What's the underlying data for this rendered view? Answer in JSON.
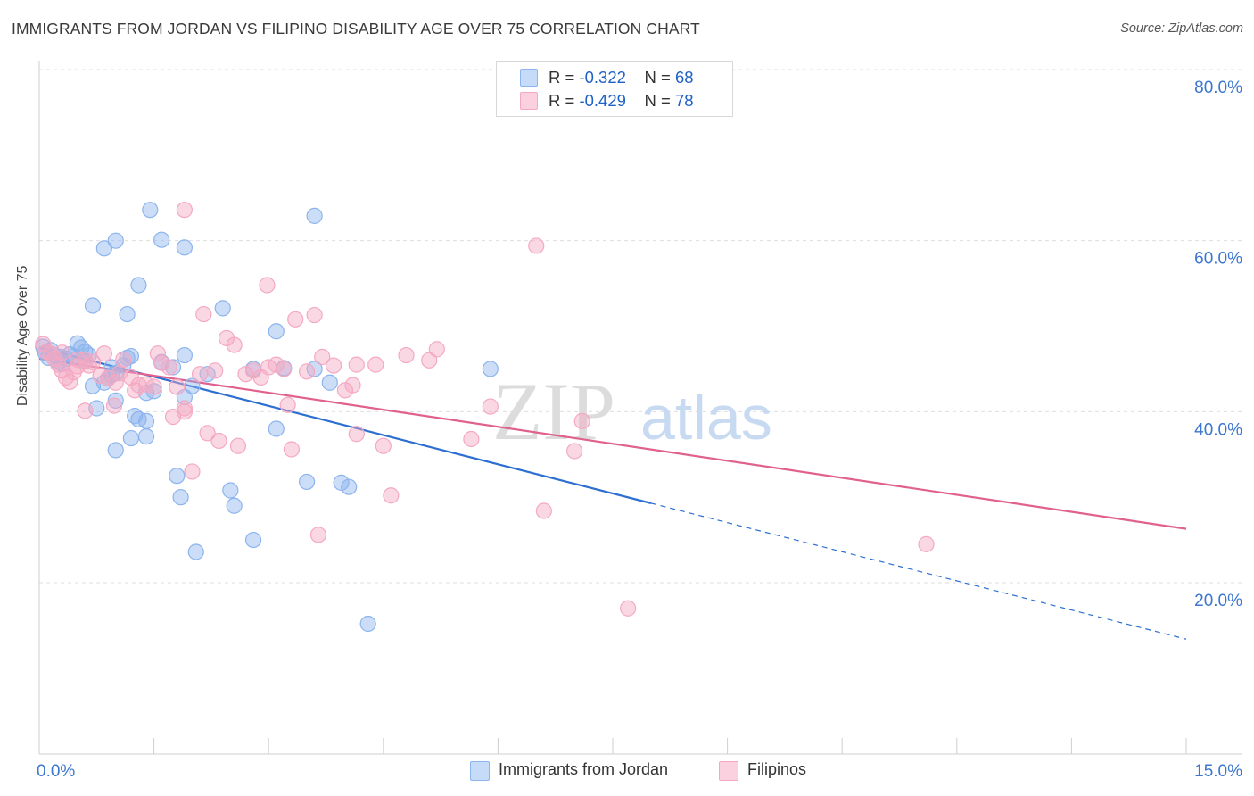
{
  "title": "IMMIGRANTS FROM JORDAN VS FILIPINO DISABILITY AGE OVER 75 CORRELATION CHART",
  "source": "Source: ZipAtlas.com",
  "watermark": {
    "zip": "ZIP",
    "atlas": "atlas"
  },
  "legend": {
    "rows": [
      {
        "r_label": "R =",
        "r_value": "-0.322",
        "n_label": "N =",
        "n_value": "68"
      },
      {
        "r_label": "R =",
        "r_value": "-0.429",
        "n_label": "N =",
        "n_value": "78"
      }
    ]
  },
  "chart_data": {
    "type": "scatter",
    "title": "IMMIGRANTS FROM JORDAN VS FILIPINO DISABILITY AGE OVER 75 CORRELATION CHART",
    "xlabel": "",
    "ylabel": "Disability Age Over 75",
    "xlim": [
      0,
      15
    ],
    "ylim": [
      0,
      80
    ],
    "x_tick_labels": [
      "0.0%",
      "15.0%"
    ],
    "y_ticks": [
      20,
      40,
      60,
      80
    ],
    "y_tick_labels": [
      "20.0%",
      "40.0%",
      "60.0%",
      "80.0%"
    ],
    "grid": true,
    "legend_position": "bottom",
    "series": [
      {
        "name": "Immigrants from Jordan",
        "color": "#8cb4ee",
        "line_color": "#2c6fd1",
        "stats": {
          "R": -0.322,
          "N": 68
        },
        "trend": {
          "x0": 0,
          "y0": 47.5,
          "x1": 8.0,
          "y1": 29.3,
          "dashed_to_x": 15,
          "dashed_to_y": 13.4
        },
        "points": [
          [
            0.05,
            47.6
          ],
          [
            0.08,
            46.9
          ],
          [
            0.12,
            46.3
          ],
          [
            0.15,
            47.2
          ],
          [
            0.2,
            46.6
          ],
          [
            0.25,
            45.8
          ],
          [
            0.28,
            46.4
          ],
          [
            0.3,
            45.6
          ],
          [
            0.35,
            46.2
          ],
          [
            0.4,
            46.7
          ],
          [
            0.45,
            46.5
          ],
          [
            0.5,
            48.0
          ],
          [
            0.55,
            47.5
          ],
          [
            0.6,
            45.9
          ],
          [
            0.65,
            46.6
          ],
          [
            0.7,
            43.0
          ],
          [
            0.75,
            40.4
          ],
          [
            0.7,
            52.4
          ],
          [
            0.85,
            43.4
          ],
          [
            0.9,
            43.9
          ],
          [
            0.95,
            44.3
          ],
          [
            1.0,
            44.5
          ],
          [
            0.95,
            45.2
          ],
          [
            1.1,
            45.4
          ],
          [
            1.15,
            46.3
          ],
          [
            1.2,
            46.5
          ],
          [
            0.85,
            59.1
          ],
          [
            1.0,
            60.0
          ],
          [
            1.15,
            51.4
          ],
          [
            1.3,
            54.8
          ],
          [
            1.45,
            63.6
          ],
          [
            1.6,
            60.1
          ],
          [
            1.6,
            45.8
          ],
          [
            1.75,
            45.2
          ],
          [
            1.9,
            46.6
          ],
          [
            1.9,
            59.2
          ],
          [
            2.0,
            43.0
          ],
          [
            1.9,
            41.7
          ],
          [
            2.2,
            44.4
          ],
          [
            2.4,
            52.1
          ],
          [
            2.8,
            45.0
          ],
          [
            3.1,
            49.4
          ],
          [
            3.2,
            45.1
          ],
          [
            3.6,
            45.0
          ],
          [
            3.8,
            43.4
          ],
          [
            3.6,
            62.9
          ],
          [
            5.9,
            45.0
          ],
          [
            1.0,
            35.5
          ],
          [
            1.2,
            36.9
          ],
          [
            1.25,
            39.5
          ],
          [
            1.3,
            39.1
          ],
          [
            1.4,
            37.1
          ],
          [
            1.4,
            38.9
          ],
          [
            1.5,
            42.4
          ],
          [
            1.8,
            32.5
          ],
          [
            1.85,
            30.0
          ],
          [
            2.05,
            23.6
          ],
          [
            2.5,
            30.8
          ],
          [
            2.55,
            29.0
          ],
          [
            2.8,
            25.0
          ],
          [
            3.1,
            38.0
          ],
          [
            3.5,
            31.8
          ],
          [
            3.95,
            31.7
          ],
          [
            4.05,
            31.2
          ],
          [
            4.3,
            15.2
          ],
          [
            1.4,
            42.2
          ],
          [
            1.0,
            41.3
          ],
          [
            0.6,
            47.0
          ]
        ]
      },
      {
        "name": "Filipinos",
        "color": "#f5a8c2",
        "line_color": "#e0608e",
        "stats": {
          "R": -0.429,
          "N": 78
        },
        "trend": {
          "x0": 0,
          "y0": 46.2,
          "x1": 15,
          "y1": 26.3
        },
        "points": [
          [
            0.05,
            47.9
          ],
          [
            0.1,
            47.0
          ],
          [
            0.15,
            46.8
          ],
          [
            0.2,
            46.2
          ],
          [
            0.25,
            45.5
          ],
          [
            0.3,
            44.8
          ],
          [
            0.35,
            44.0
          ],
          [
            0.4,
            43.5
          ],
          [
            0.45,
            44.6
          ],
          [
            0.5,
            45.3
          ],
          [
            0.6,
            46.0
          ],
          [
            0.65,
            45.4
          ],
          [
            0.7,
            45.8
          ],
          [
            0.8,
            44.2
          ],
          [
            0.85,
            46.8
          ],
          [
            0.9,
            43.9
          ],
          [
            1.0,
            43.4
          ],
          [
            1.05,
            44.5
          ],
          [
            1.1,
            46.1
          ],
          [
            1.2,
            44.0
          ],
          [
            1.25,
            42.5
          ],
          [
            1.3,
            43.1
          ],
          [
            1.4,
            43.2
          ],
          [
            1.5,
            42.9
          ],
          [
            1.55,
            46.8
          ],
          [
            1.6,
            45.7
          ],
          [
            1.7,
            45.2
          ],
          [
            1.8,
            42.9
          ],
          [
            1.75,
            39.4
          ],
          [
            1.9,
            40.0
          ],
          [
            1.9,
            40.4
          ],
          [
            2.0,
            33.0
          ],
          [
            2.1,
            44.4
          ],
          [
            2.15,
            51.4
          ],
          [
            2.2,
            37.5
          ],
          [
            2.3,
            44.8
          ],
          [
            2.35,
            36.6
          ],
          [
            2.45,
            48.6
          ],
          [
            2.55,
            47.8
          ],
          [
            2.6,
            36.0
          ],
          [
            2.7,
            44.4
          ],
          [
            2.8,
            44.8
          ],
          [
            2.9,
            44.0
          ],
          [
            3.0,
            45.2
          ],
          [
            3.1,
            45.5
          ],
          [
            3.2,
            45.0
          ],
          [
            3.25,
            40.8
          ],
          [
            3.3,
            35.6
          ],
          [
            3.35,
            50.8
          ],
          [
            3.5,
            44.7
          ],
          [
            3.6,
            51.3
          ],
          [
            3.7,
            46.4
          ],
          [
            3.85,
            45.4
          ],
          [
            4.0,
            42.5
          ],
          [
            4.1,
            43.1
          ],
          [
            4.15,
            37.4
          ],
          [
            4.15,
            45.5
          ],
          [
            4.4,
            45.5
          ],
          [
            4.5,
            36.0
          ],
          [
            4.6,
            30.2
          ],
          [
            4.8,
            46.6
          ],
          [
            5.1,
            46.0
          ],
          [
            5.2,
            47.3
          ],
          [
            5.65,
            36.8
          ],
          [
            5.9,
            40.6
          ],
          [
            6.5,
            59.4
          ],
          [
            6.6,
            28.4
          ],
          [
            7.0,
            35.4
          ],
          [
            7.1,
            38.9
          ],
          [
            7.7,
            17.0
          ],
          [
            11.6,
            24.5
          ],
          [
            1.9,
            63.6
          ],
          [
            2.98,
            54.8
          ],
          [
            3.65,
            25.6
          ],
          [
            0.6,
            40.1
          ],
          [
            0.98,
            40.7
          ],
          [
            0.5,
            46.1
          ],
          [
            0.3,
            46.9
          ]
        ]
      }
    ]
  }
}
